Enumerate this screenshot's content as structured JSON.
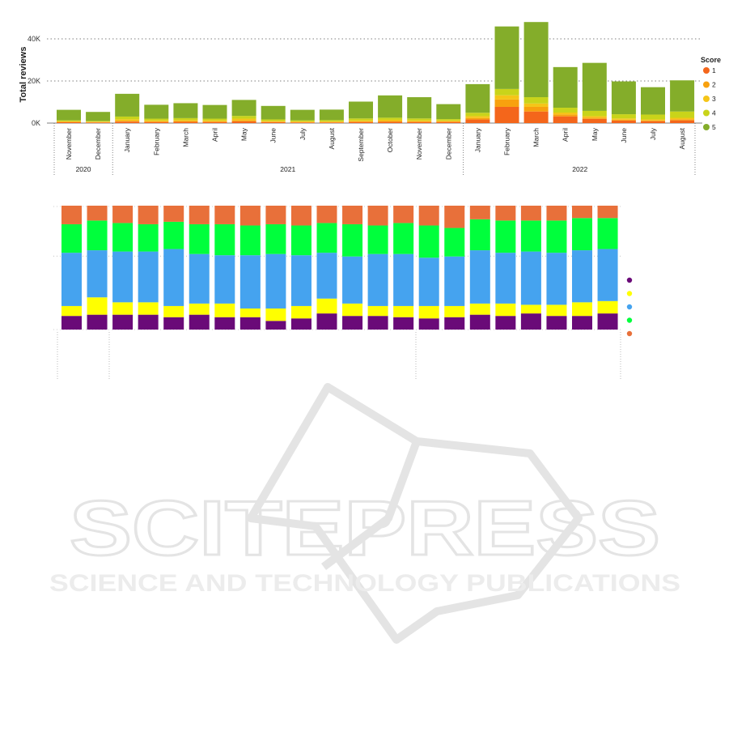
{
  "watermark": {
    "title": "SCITEPRESS",
    "subtitle": "SCIENCE AND TECHNOLOGY PUBLICATIONS",
    "color": "#e4e4e4"
  },
  "chart_data": [
    {
      "type": "bar",
      "stacked": true,
      "title": "",
      "ylabel": "Total reviews",
      "xlabel": "",
      "ylim": [
        0,
        48000
      ],
      "yticks": [
        0,
        20000,
        40000
      ],
      "ytick_labels": [
        "0K",
        "20K",
        "40K"
      ],
      "grid": true,
      "legend_title": "Score",
      "legend_position": "right",
      "categories": [
        "November",
        "December",
        "January",
        "February",
        "March",
        "April",
        "May",
        "June",
        "July",
        "August",
        "September",
        "October",
        "November",
        "December",
        "January",
        "February",
        "March",
        "April",
        "May",
        "June",
        "July",
        "August"
      ],
      "years": [
        {
          "label": "2020",
          "start": 0,
          "end": 1
        },
        {
          "label": "2021",
          "start": 2,
          "end": 13
        },
        {
          "label": "2022",
          "start": 14,
          "end": 21
        }
      ],
      "series": [
        {
          "name": "1",
          "color": "#f4661b",
          "values": [
            400,
            300,
            700,
            500,
            600,
            500,
            800,
            400,
            300,
            300,
            500,
            600,
            500,
            500,
            1700,
            7700,
            5500,
            3200,
            2000,
            1200,
            900,
            1300
          ]
        },
        {
          "name": "2",
          "color": "#f8a10e",
          "values": [
            200,
            150,
            400,
            300,
            350,
            300,
            500,
            250,
            200,
            200,
            300,
            350,
            300,
            300,
            700,
            3500,
            2200,
            900,
            600,
            400,
            350,
            500
          ]
        },
        {
          "name": "3",
          "color": "#f5c518",
          "values": [
            300,
            250,
            700,
            500,
            500,
            500,
            800,
            400,
            300,
            300,
            500,
            600,
            500,
            400,
            900,
            2000,
            1600,
            900,
            700,
            600,
            500,
            700
          ]
        },
        {
          "name": "4",
          "color": "#c9d41a",
          "values": [
            400,
            300,
            1300,
            800,
            900,
            800,
            1300,
            700,
            500,
            600,
            900,
            1000,
            900,
            700,
            1600,
            3000,
            3000,
            2300,
            2500,
            2000,
            2300,
            3000
          ]
        },
        {
          "name": "5",
          "color": "#84ad2a",
          "values": [
            5000,
            4300,
            10800,
            6600,
            7100,
            6500,
            7600,
            6400,
            5000,
            5000,
            8000,
            10600,
            10100,
            7100,
            13600,
            29700,
            35700,
            19300,
            22800,
            15600,
            13000,
            14800
          ]
        }
      ]
    },
    {
      "type": "bar",
      "stacked": true,
      "normalized": true,
      "title": "",
      "xlabel": "",
      "ylabel": "",
      "ylim": [
        0,
        1
      ],
      "legend_position": "right",
      "categories": [
        "November",
        "December",
        "January",
        "February",
        "March",
        "April",
        "May",
        "June",
        "July",
        "August",
        "September",
        "October",
        "November",
        "December",
        "January",
        "February",
        "March",
        "April",
        "May",
        "June",
        "July",
        "August"
      ],
      "series": [
        {
          "color": "#6a0a78",
          "values": [
            0.11,
            0.12,
            0.12,
            0.12,
            0.1,
            0.12,
            0.1,
            0.1,
            0.07,
            0.09,
            0.13,
            0.11,
            0.11,
            0.1,
            0.09,
            0.1,
            0.12,
            0.11,
            0.13,
            0.11,
            0.11,
            0.13
          ]
        },
        {
          "color": "#ffff00",
          "values": [
            0.08,
            0.14,
            0.1,
            0.1,
            0.09,
            0.09,
            0.11,
            0.07,
            0.1,
            0.1,
            0.12,
            0.1,
            0.08,
            0.09,
            0.1,
            0.09,
            0.09,
            0.1,
            0.07,
            0.09,
            0.11,
            0.1
          ]
        },
        {
          "color": "#45a3ef",
          "values": [
            0.43,
            0.38,
            0.41,
            0.41,
            0.46,
            0.4,
            0.39,
            0.43,
            0.44,
            0.41,
            0.37,
            0.38,
            0.42,
            0.42,
            0.39,
            0.4,
            0.43,
            0.41,
            0.43,
            0.42,
            0.42,
            0.42
          ]
        },
        {
          "color": "#00ff3c",
          "values": [
            0.23,
            0.24,
            0.23,
            0.22,
            0.22,
            0.24,
            0.25,
            0.24,
            0.24,
            0.24,
            0.24,
            0.26,
            0.23,
            0.25,
            0.26,
            0.23,
            0.25,
            0.26,
            0.25,
            0.26,
            0.26,
            0.25
          ]
        },
        {
          "color": "#e8703a",
          "values": [
            0.15,
            0.12,
            0.14,
            0.15,
            0.13,
            0.15,
            0.15,
            0.16,
            0.15,
            0.16,
            0.14,
            0.15,
            0.16,
            0.14,
            0.16,
            0.18,
            0.11,
            0.12,
            0.12,
            0.12,
            0.1,
            0.1
          ]
        }
      ]
    }
  ]
}
